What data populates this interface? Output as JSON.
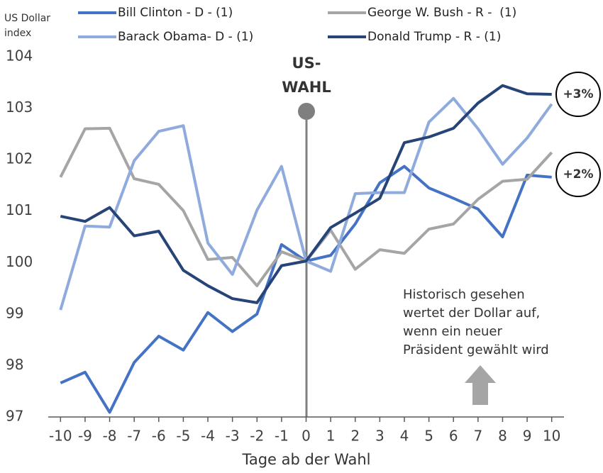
{
  "chart_data": {
    "type": "line",
    "y_label": [
      "US Dollar",
      "index"
    ],
    "x_label": "Tage ab der Wahl",
    "x": [
      -10,
      -9,
      -8,
      -7,
      -6,
      -5,
      -4,
      -3,
      -2,
      -1,
      0,
      1,
      2,
      3,
      4,
      5,
      6,
      7,
      8,
      9,
      10
    ],
    "xlim": [
      -10.5,
      10.5
    ],
    "xticks": [
      -10,
      -9,
      -8,
      -7,
      -6,
      -5,
      -4,
      -3,
      -2,
      -1,
      0,
      1,
      2,
      3,
      4,
      5,
      6,
      7,
      8,
      9,
      10
    ],
    "ylim": [
      97,
      104
    ],
    "yticks": [
      97,
      98,
      99,
      100,
      101,
      102,
      103,
      104
    ],
    "grid": false,
    "series": [
      {
        "name": "Bill Clinton - D - (1)",
        "color": "#4472c4",
        "values": [
          97.66,
          97.87,
          97.09,
          98.06,
          98.57,
          98.3,
          99.03,
          98.66,
          99.0,
          100.35,
          100.03,
          100.14,
          100.75,
          101.55,
          101.87,
          101.45,
          101.25,
          101.04,
          100.5,
          101.7,
          101.66
        ]
      },
      {
        "name": "George W. Bush - R -  (1)",
        "color": "#a5a5a5",
        "values": [
          101.66,
          102.6,
          102.61,
          101.63,
          101.52,
          101.01,
          100.06,
          100.1,
          99.55,
          100.21,
          100.03,
          100.63,
          99.87,
          100.25,
          100.18,
          100.65,
          100.75,
          101.23,
          101.58,
          101.62,
          102.14
        ]
      },
      {
        "name": "Barack Obama- D - (1)",
        "color": "#8faadc",
        "values": [
          99.08,
          100.71,
          100.69,
          101.98,
          102.55,
          102.66,
          100.38,
          99.77,
          101.02,
          101.87,
          100.03,
          99.83,
          101.34,
          101.36,
          101.36,
          102.73,
          103.19,
          102.6,
          101.91,
          102.42,
          103.08
        ]
      },
      {
        "name": "Donald Trump - R - (1)",
        "color": "#264478",
        "values": [
          100.9,
          100.8,
          101.07,
          100.52,
          100.61,
          99.85,
          99.55,
          99.3,
          99.22,
          99.94,
          100.03,
          100.68,
          100.96,
          101.25,
          102.33,
          102.44,
          102.61,
          103.1,
          103.44,
          103.28,
          103.27
        ]
      }
    ],
    "annotations": {
      "election": [
        "US-",
        "WAHL"
      ],
      "note": [
        "Historisch gesehen",
        "wertet der Dollar auf,",
        "wenn ein neuer",
        "Präsident gewählt wird"
      ],
      "badges": [
        "+3%",
        "+2%"
      ]
    }
  }
}
